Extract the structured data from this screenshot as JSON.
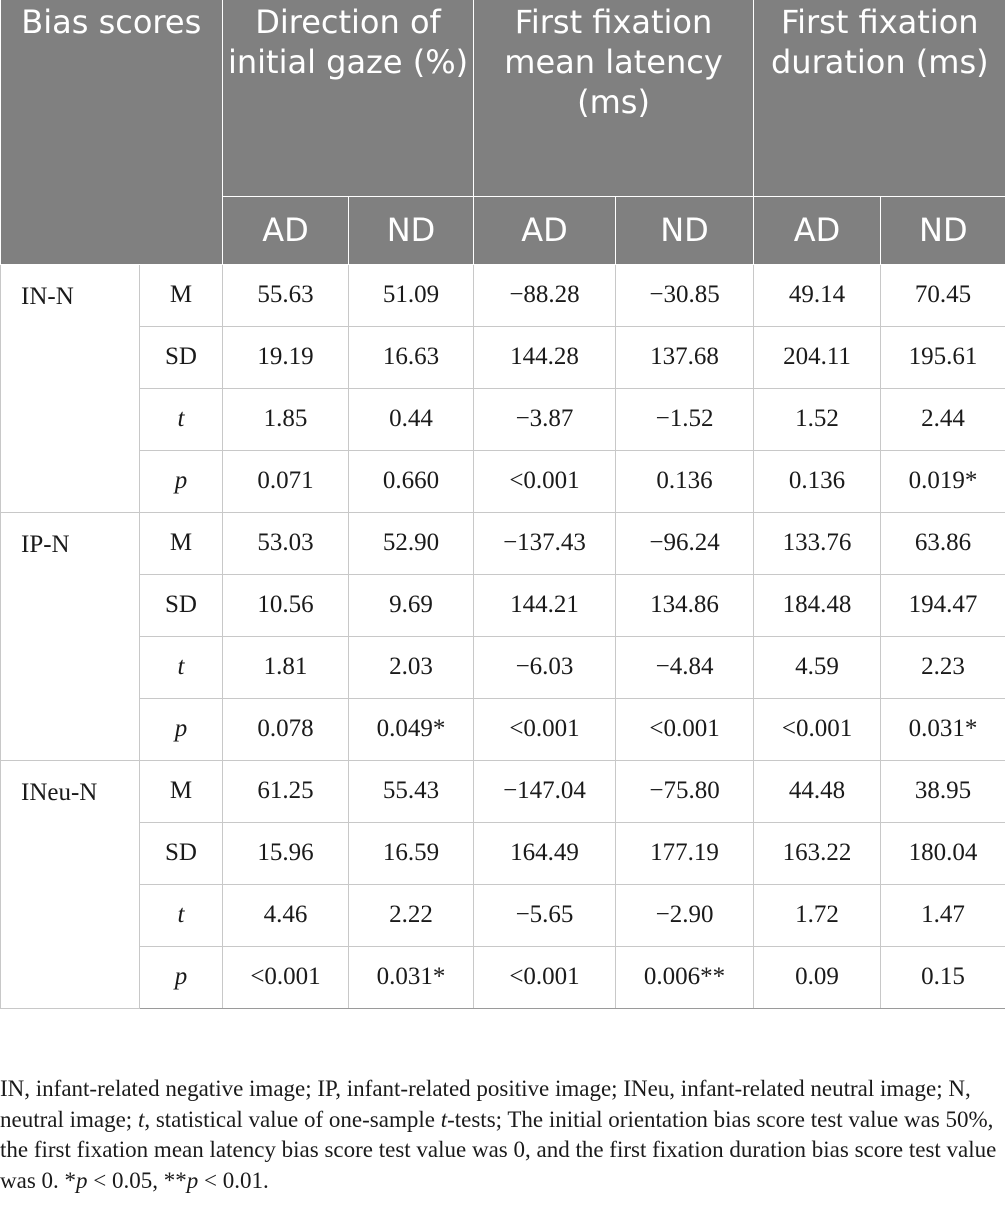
{
  "table": {
    "header": {
      "bias_scores": "Bias scores",
      "groups": [
        "Direction of initial gaze (%)",
        "First fixation mean latency (ms)",
        "First fixation duration (ms)"
      ],
      "subgroups": [
        "AD",
        "ND",
        "AD",
        "ND",
        "AD",
        "ND"
      ]
    },
    "blocks": [
      {
        "label": "IN-N",
        "rows": [
          {
            "stat": "M",
            "italic": false,
            "values": [
              "55.63",
              "51.09",
              "−88.28",
              "−30.85",
              "49.14",
              "70.45"
            ]
          },
          {
            "stat": "SD",
            "italic": false,
            "values": [
              "19.19",
              "16.63",
              "144.28",
              "137.68",
              "204.11",
              "195.61"
            ]
          },
          {
            "stat": "t",
            "italic": true,
            "values": [
              "1.85",
              "0.44",
              "−3.87",
              "−1.52",
              "1.52",
              "2.44"
            ]
          },
          {
            "stat": "p",
            "italic": true,
            "values": [
              "0.071",
              "0.660",
              "<0.001",
              "0.136",
              "0.136",
              "0.019*"
            ]
          }
        ]
      },
      {
        "label": "IP-N",
        "rows": [
          {
            "stat": "M",
            "italic": false,
            "values": [
              "53.03",
              "52.90",
              "−137.43",
              "−96.24",
              "133.76",
              "63.86"
            ]
          },
          {
            "stat": "SD",
            "italic": false,
            "values": [
              "10.56",
              "9.69",
              "144.21",
              "134.86",
              "184.48",
              "194.47"
            ]
          },
          {
            "stat": "t",
            "italic": true,
            "values": [
              "1.81",
              "2.03",
              "−6.03",
              "−4.84",
              "4.59",
              "2.23"
            ]
          },
          {
            "stat": "p",
            "italic": true,
            "values": [
              "0.078",
              "0.049*",
              "<0.001",
              "<0.001",
              "<0.001",
              "0.031*"
            ]
          }
        ]
      },
      {
        "label": "INeu-N",
        "rows": [
          {
            "stat": "M",
            "italic": false,
            "values": [
              "61.25",
              "55.43",
              "−147.04",
              "−75.80",
              "44.48",
              "38.95"
            ]
          },
          {
            "stat": "SD",
            "italic": false,
            "values": [
              "15.96",
              "16.59",
              "164.49",
              "177.19",
              "163.22",
              "180.04"
            ]
          },
          {
            "stat": "t",
            "italic": true,
            "values": [
              "4.46",
              "2.22",
              "−5.65",
              "−2.90",
              "1.72",
              "1.47"
            ]
          },
          {
            "stat": "p",
            "italic": true,
            "values": [
              "<0.001",
              "0.031*",
              "<0.001",
              "0.006**",
              "0.09",
              "0.15"
            ]
          }
        ]
      }
    ]
  },
  "footnote": {
    "part1": "IN, infant-related negative image; IP, infant-related positive image; INeu, infant-related neutral image; N, neutral image; ",
    "t_symbol": "t",
    "part2": ", statistical value of one-sample ",
    "t_tests_symbol": "t",
    "part3": "-tests; The initial orientation bias score test value was 50%, the first fixation mean latency bias score test value was 0, and the first fixation duration bias score test value was 0. *",
    "p_symbol_1": "p",
    "part4": " < 0.05, **",
    "p_symbol_2": "p",
    "part5": " < 0.01."
  },
  "colors": {
    "header_bg": "#808080",
    "header_text": "#ffffff",
    "grid": "#c8c8c8"
  }
}
